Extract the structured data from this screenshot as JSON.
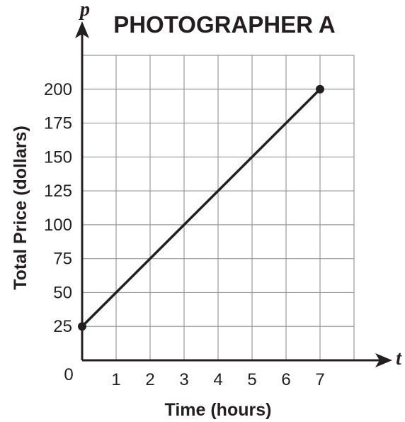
{
  "chart_data": {
    "type": "line",
    "title": "PHOTOGRAPHER A",
    "xlabel": "Time (hours)",
    "ylabel": "Total Price (dollars)",
    "x_var": "t",
    "y_var": "p",
    "origin_label": "0",
    "x_ticks": [
      "1",
      "2",
      "3",
      "4",
      "5",
      "6",
      "7"
    ],
    "y_ticks": [
      "25",
      "50",
      "75",
      "100",
      "125",
      "150",
      "175",
      "200"
    ],
    "xlim": [
      0,
      8
    ],
    "ylim": [
      0,
      225
    ],
    "grid": true,
    "series": [
      {
        "x": [
          0,
          7
        ],
        "y": [
          25,
          200
        ],
        "endpoints_marked": true
      }
    ],
    "colors": {
      "ink": "#231f20",
      "grid": "#9a9a9a"
    }
  }
}
